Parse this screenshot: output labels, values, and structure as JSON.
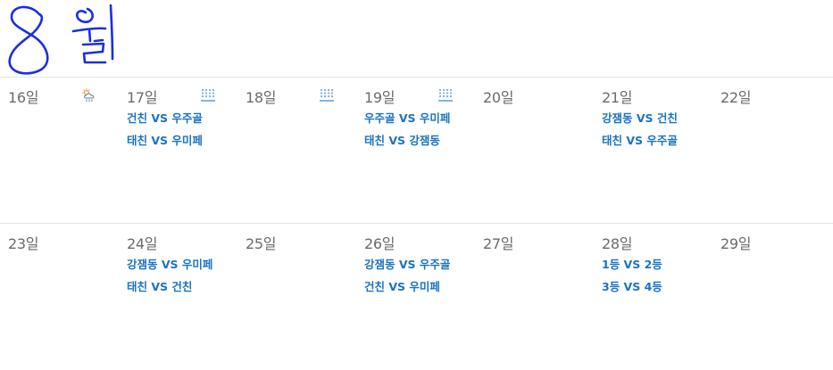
{
  "header": {
    "handwritten_title": "8월",
    "ink_color": "#1a2ee6"
  },
  "colors": {
    "event_text": "#1a73c1",
    "day_text": "#6b6b6b",
    "weather_icon": "#3b8fd6"
  },
  "weeks": [
    {
      "days": [
        {
          "label": "16일",
          "weather": "cloud-sun-rain-icon",
          "events": []
        },
        {
          "label": "17일",
          "weather": "rain-icon",
          "events": [
            "건친 VS 우주골",
            "태친 VS 우미페"
          ]
        },
        {
          "label": "18일",
          "weather": "rain-icon",
          "events": []
        },
        {
          "label": "19일",
          "weather": "rain-icon",
          "events": [
            "우주골 VS 우미페",
            "태친 VS 강잼동"
          ]
        },
        {
          "label": "20일",
          "weather": "",
          "events": []
        },
        {
          "label": "21일",
          "weather": "",
          "events": [
            "강잼동 VS 건친",
            "태친 VS 우주골"
          ]
        },
        {
          "label": "22일",
          "weather": "",
          "events": []
        }
      ]
    },
    {
      "days": [
        {
          "label": "23일",
          "weather": "",
          "events": []
        },
        {
          "label": "24일",
          "weather": "",
          "events": [
            "강잼동 VS 우미페",
            "태친 VS 건친"
          ]
        },
        {
          "label": "25일",
          "weather": "",
          "events": []
        },
        {
          "label": "26일",
          "weather": "",
          "events": [
            "강잼동 VS 우주골",
            "건친 VS 우미페"
          ]
        },
        {
          "label": "27일",
          "weather": "",
          "events": []
        },
        {
          "label": "28일",
          "weather": "",
          "events": [
            "1등 VS 2등",
            "3등 VS 4등"
          ]
        },
        {
          "label": "29일",
          "weather": "",
          "events": []
        }
      ]
    }
  ]
}
